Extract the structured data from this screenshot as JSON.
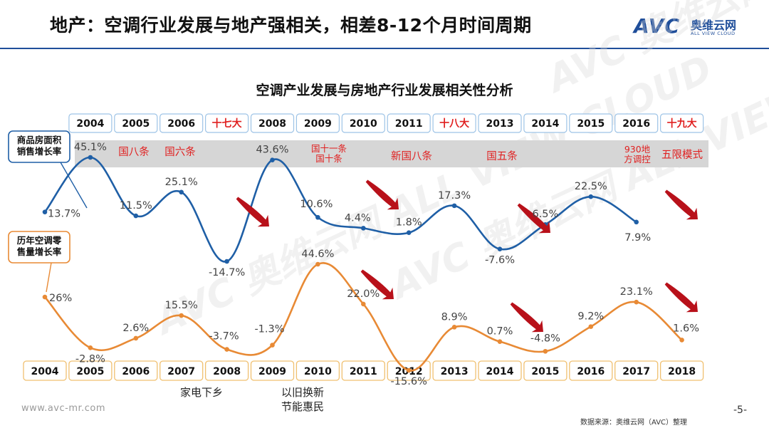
{
  "header": {
    "title": "地产：空调行业发展与地产强相关，相差8-12个月时间周期",
    "brand_avc": "AVC",
    "brand_cn": "奥维云网",
    "brand_en": "ALL VIEW CLOUD"
  },
  "chart_data": {
    "type": "line",
    "title": "空调产业发展与房地产行业发展相关性分析",
    "top_axis": [
      "2004",
      "2005",
      "2006",
      "十七大",
      "2008",
      "2009",
      "2010",
      "2011",
      "十八大",
      "2013",
      "2014",
      "2015",
      "2016",
      "十九大"
    ],
    "top_axis_highlight": [
      "十七大",
      "十八大",
      "十九大"
    ],
    "bottom_axis": [
      "2004",
      "2005",
      "2006",
      "2007",
      "2008",
      "2009",
      "2010",
      "2011",
      "2012",
      "2013",
      "2014",
      "2015",
      "2016",
      "2017",
      "2018"
    ],
    "series": [
      {
        "name": "商品房面积销售增长率",
        "color": "#1f5fa6",
        "points": [
          {
            "x": "2004",
            "value": 13.7,
            "label": "13.7%"
          },
          {
            "x": "2005",
            "value": 45.1,
            "label": "45.1%"
          },
          {
            "x": "2006",
            "value": 11.5,
            "label": "11.5%"
          },
          {
            "x": "2007",
            "value": 25.1,
            "label": "25.1%"
          },
          {
            "x": "2008",
            "value": -14.7,
            "label": "-14.7%"
          },
          {
            "x": "2009",
            "value": 43.6,
            "label": "43.6%"
          },
          {
            "x": "2010",
            "value": 10.6,
            "label": "10.6%"
          },
          {
            "x": "2011",
            "value": 4.4,
            "label": "4.4%"
          },
          {
            "x": "2012",
            "value": 1.8,
            "label": "1.8%"
          },
          {
            "x": "2013",
            "value": 17.3,
            "label": "17.3%"
          },
          {
            "x": "2014",
            "value": -7.6,
            "label": "-7.6%"
          },
          {
            "x": "2015",
            "value": 6.5,
            "label": "6.5%"
          },
          {
            "x": "2016",
            "value": 22.5,
            "label": "22.5%"
          },
          {
            "x": "2017",
            "value": 7.9,
            "label": "7.9%"
          }
        ]
      },
      {
        "name": "历年空调零售量增长率",
        "color": "#e88a35",
        "points": [
          {
            "x": "2004",
            "value": 26,
            "label": "26%"
          },
          {
            "x": "2005",
            "value": -2.8,
            "label": "-2.8%"
          },
          {
            "x": "2006",
            "value": 2.6,
            "label": "2.6%"
          },
          {
            "x": "2007",
            "value": 15.5,
            "label": "15.5%"
          },
          {
            "x": "2008",
            "value": -3.7,
            "label": "-3.7%"
          },
          {
            "x": "2009",
            "value": -1.3,
            "label": "-1.3%"
          },
          {
            "x": "2010",
            "value": 44.6,
            "label": "44.6%"
          },
          {
            "x": "2011",
            "value": 22.0,
            "label": "22.0%"
          },
          {
            "x": "2012",
            "value": -15.6,
            "label": "-15.6%"
          },
          {
            "x": "2013",
            "value": 8.9,
            "label": "8.9%"
          },
          {
            "x": "2014",
            "value": 0.7,
            "label": "0.7%"
          },
          {
            "x": "2015",
            "value": -4.8,
            "label": "-4.8%"
          },
          {
            "x": "2016",
            "value": 9.2,
            "label": "9.2%"
          },
          {
            "x": "2017",
            "value": 23.1,
            "label": "23.1%"
          },
          {
            "x": "2018",
            "value": 1.6,
            "label": "1.6%"
          }
        ]
      }
    ],
    "series_labels": {
      "housing": [
        "商品房面积",
        "销售增长率"
      ],
      "ac": [
        "历年空调零",
        "售量增长率"
      ]
    },
    "policy_annotations": [
      {
        "x": "2005",
        "lines": [
          "国八条"
        ]
      },
      {
        "x": "2006",
        "lines": [
          "国六条"
        ]
      },
      {
        "x": "2009",
        "lines": [
          "国十一条",
          "国十条"
        ]
      },
      {
        "x": "2011",
        "lines": [
          "新国八条"
        ]
      },
      {
        "x": "2013",
        "lines": [
          "国五条"
        ]
      },
      {
        "x": "2016",
        "lines": [
          "930地",
          "方调控"
        ]
      },
      {
        "x": "2017",
        "lines": [
          "五限模式"
        ]
      }
    ],
    "stimulus_annotations": [
      {
        "x": "2007",
        "lines": [
          "家电下乡"
        ]
      },
      {
        "x": "2009",
        "lines": [
          "以旧换新",
          "节能惠民"
        ]
      }
    ],
    "watermark": "AVC 奥维云网 ALL VIEW CLOUD"
  },
  "footer": {
    "website": "www.avc-mr.com",
    "page": "-5-",
    "source": "数据来源：奥维云网（AVC）整理"
  }
}
